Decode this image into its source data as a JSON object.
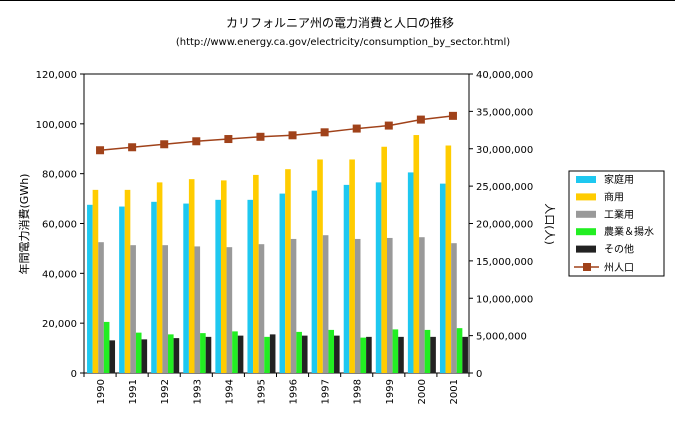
{
  "chart_data": {
    "type": "bar",
    "title": "カリフォルニア州の電力消費と人口の推移",
    "subtitle": "(http://www.energy.ca.gov/electricity/consumption_by_sector.html)",
    "xlabel": "",
    "ylabel": "年間電力消費(GWh)",
    "y2label": "人口(人)",
    "ylim": [
      0,
      120000
    ],
    "y2lim": [
      0,
      40000000
    ],
    "ytick_labels": [
      "0",
      "20,000",
      "40,000",
      "60,000",
      "80,000",
      "100,000",
      "120,000"
    ],
    "y2tick_labels": [
      "0",
      "5,000,000",
      "10,000,000",
      "15,000,000",
      "20,000,000",
      "25,000,000",
      "30,000,000",
      "35,000,000",
      "40,000,000"
    ],
    "categories": [
      "1990",
      "1991",
      "1992",
      "1993",
      "1994",
      "1995",
      "1996",
      "1997",
      "1998",
      "1999",
      "2000",
      "2001"
    ],
    "series": [
      {
        "name": "家庭用",
        "color": "#1ec8f0",
        "values": [
          67500,
          66800,
          68700,
          68000,
          69500,
          69500,
          72000,
          73200,
          75500,
          76500,
          80500,
          76000
        ]
      },
      {
        "name": "商用",
        "color": "#ffcc00",
        "values": [
          73500,
          73500,
          76500,
          77800,
          77300,
          79500,
          81800,
          85700,
          85700,
          90800,
          95500,
          91300
        ]
      },
      {
        "name": "工業用",
        "color": "#999999",
        "values": [
          52500,
          51300,
          51300,
          50800,
          50500,
          51700,
          53800,
          55300,
          53800,
          54200,
          54500,
          52100
        ]
      },
      {
        "name": "農業＆揚水",
        "color": "#22ee22",
        "values": [
          20500,
          16200,
          15500,
          16000,
          16700,
          14500,
          16500,
          17300,
          14200,
          17500,
          17300,
          18000
        ]
      },
      {
        "name": "その他",
        "color": "#222222",
        "values": [
          13100,
          13500,
          14000,
          14500,
          15000,
          15500,
          15000,
          15000,
          14500,
          14500,
          14500,
          14500
        ]
      }
    ],
    "line_series": {
      "name": "州人口",
      "color": "#a0421a",
      "axis": "right",
      "values": [
        29800000,
        30200000,
        30600000,
        31000000,
        31300000,
        31600000,
        31800000,
        32200000,
        32700000,
        33100000,
        33900000,
        34400000
      ]
    },
    "legend_position": "right",
    "grid": false
  }
}
